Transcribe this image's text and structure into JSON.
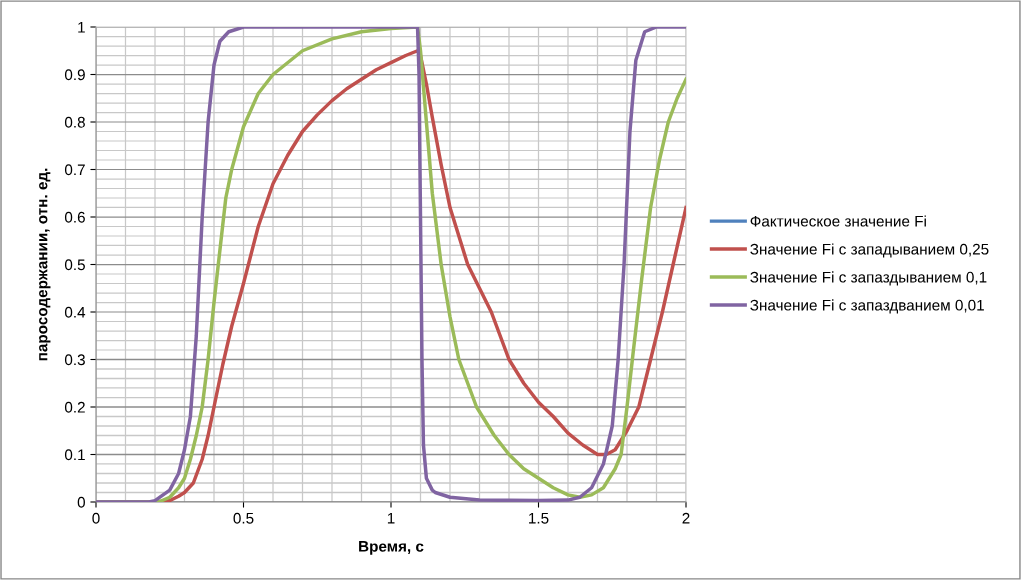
{
  "chart_data": {
    "type": "line",
    "xlabel": "Время, с",
    "ylabel": "паросодержании, отн. ед.",
    "xlim": [
      0,
      2
    ],
    "ylim": [
      0,
      1
    ],
    "xticks": [
      0,
      0.5,
      1,
      1.5,
      2
    ],
    "yticks": [
      0,
      0.1,
      0.2,
      0.3,
      0.4,
      0.5,
      0.6,
      0.7,
      0.8,
      0.9,
      1
    ],
    "grid": true,
    "legend": "right",
    "marker": "none",
    "line_style": "solid",
    "series": [
      {
        "name": "Фактическое значение Fi",
        "color": "#4f81bd"
      },
      {
        "name": "Значение Fi с западыванием 0,25",
        "color": "#c0504d",
        "x": [
          0,
          0.22,
          0.25,
          0.28,
          0.3,
          0.33,
          0.36,
          0.38,
          0.4,
          0.43,
          0.46,
          0.5,
          0.55,
          0.6,
          0.65,
          0.7,
          0.75,
          0.8,
          0.85,
          0.9,
          0.95,
          1.0,
          1.05,
          1.09,
          1.1,
          1.12,
          1.14,
          1.17,
          1.2,
          1.26,
          1.3,
          1.34,
          1.4,
          1.45,
          1.5,
          1.55,
          1.6,
          1.65,
          1.7,
          1.73,
          1.76,
          1.8,
          1.84,
          1.88,
          1.92,
          1.96,
          2
        ],
        "values": [
          0,
          0,
          0.003,
          0.012,
          0.02,
          0.04,
          0.09,
          0.14,
          0.2,
          0.29,
          0.37,
          0.46,
          0.58,
          0.67,
          0.73,
          0.78,
          0.815,
          0.845,
          0.87,
          0.89,
          0.91,
          0.925,
          0.94,
          0.95,
          0.94,
          0.88,
          0.81,
          0.71,
          0.62,
          0.5,
          0.45,
          0.4,
          0.3,
          0.25,
          0.21,
          0.18,
          0.145,
          0.12,
          0.1,
          0.1,
          0.11,
          0.15,
          0.2,
          0.3,
          0.4,
          0.51,
          0.62
        ]
      },
      {
        "name": "Значение Fi с запаздыванием 0,1",
        "color": "#9bbb59",
        "x": [
          0,
          0.2,
          0.22,
          0.25,
          0.28,
          0.3,
          0.32,
          0.34,
          0.36,
          0.38,
          0.4,
          0.42,
          0.44,
          0.46,
          0.5,
          0.55,
          0.6,
          0.7,
          0.8,
          0.9,
          1.0,
          1.09,
          1.1,
          1.12,
          1.14,
          1.17,
          1.2,
          1.23,
          1.29,
          1.35,
          1.4,
          1.45,
          1.5,
          1.55,
          1.6,
          1.64,
          1.68,
          1.72,
          1.76,
          1.78,
          1.8,
          1.82,
          1.85,
          1.88,
          1.91,
          1.94,
          1.97,
          2
        ],
        "values": [
          0,
          0,
          0.002,
          0.01,
          0.03,
          0.05,
          0.09,
          0.14,
          0.2,
          0.3,
          0.42,
          0.53,
          0.64,
          0.7,
          0.79,
          0.86,
          0.9,
          0.95,
          0.975,
          0.99,
          0.997,
          1,
          0.95,
          0.8,
          0.65,
          0.5,
          0.39,
          0.3,
          0.2,
          0.14,
          0.1,
          0.07,
          0.05,
          0.03,
          0.015,
          0.01,
          0.015,
          0.03,
          0.07,
          0.1,
          0.2,
          0.31,
          0.47,
          0.62,
          0.72,
          0.8,
          0.85,
          0.89
        ]
      },
      {
        "name": "Значение Fi с запаздванием 0,01",
        "color": "#8064a2",
        "x": [
          0,
          0.18,
          0.2,
          0.25,
          0.28,
          0.3,
          0.32,
          0.34,
          0.36,
          0.38,
          0.4,
          0.42,
          0.45,
          0.5,
          1.09,
          1.095,
          1.1,
          1.105,
          1.11,
          1.12,
          1.14,
          1.15,
          1.2,
          1.3,
          1.5,
          1.6,
          1.64,
          1.68,
          1.72,
          1.75,
          1.77,
          1.79,
          1.81,
          1.83,
          1.86,
          1.9,
          2
        ],
        "values": [
          0,
          0,
          0.003,
          0.025,
          0.06,
          0.11,
          0.18,
          0.35,
          0.6,
          0.8,
          0.92,
          0.97,
          0.99,
          1,
          1,
          0.9,
          0.6,
          0.3,
          0.12,
          0.05,
          0.025,
          0.02,
          0.01,
          0.004,
          0.003,
          0.004,
          0.01,
          0.03,
          0.08,
          0.16,
          0.3,
          0.5,
          0.78,
          0.93,
          0.99,
          1,
          1
        ]
      }
    ]
  }
}
